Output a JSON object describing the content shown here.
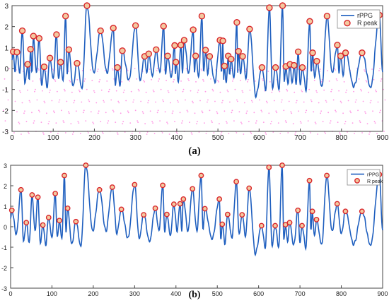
{
  "captions": {
    "a": "(a)",
    "b": "(b)"
  },
  "colors": {
    "signal": "#1f5fbf",
    "marker_edge": "#d9262b",
    "marker_fill": "#f3c9a0",
    "axis": "#444444",
    "grid_pink": "#ff33cc"
  },
  "chart_data": [
    {
      "type": "line",
      "panel": "a",
      "xlim": [
        0,
        900
      ],
      "ylim": [
        -3,
        3
      ],
      "xticks": [
        0,
        100,
        200,
        300,
        400,
        500,
        600,
        700,
        800,
        900
      ],
      "yticks": [
        -3,
        -2,
        -1,
        0,
        1,
        2,
        3
      ],
      "legend_position": "top-right",
      "series": [
        {
          "name": "rPPG",
          "kind": "line"
        },
        {
          "name": "R peak",
          "kind": "marker"
        }
      ],
      "peaks": [
        [
          3,
          0.8
        ],
        [
          12,
          0.78
        ],
        [
          25,
          1.8
        ],
        [
          38,
          0.2
        ],
        [
          45,
          0.92
        ],
        [
          52,
          1.55
        ],
        [
          66,
          1.44
        ],
        [
          78,
          0.08
        ],
        [
          92,
          0.5
        ],
        [
          108,
          1.62
        ],
        [
          118,
          0.3
        ],
        [
          130,
          2.5
        ],
        [
          138,
          0.9
        ],
        [
          158,
          0.25
        ],
        [
          182,
          3.0
        ],
        [
          215,
          1.8
        ],
        [
          246,
          1.93
        ],
        [
          256,
          0.05
        ],
        [
          268,
          0.85
        ],
        [
          300,
          2.05
        ],
        [
          322,
          0.58
        ],
        [
          332,
          0.7
        ],
        [
          350,
          0.9
        ],
        [
          368,
          2.02
        ],
        [
          378,
          0.6
        ],
        [
          395,
          1.1
        ],
        [
          398,
          0.3
        ],
        [
          410,
          1.12
        ],
        [
          418,
          1.35
        ],
        [
          440,
          1.85
        ],
        [
          446,
          0.6
        ],
        [
          461,
          2.5
        ],
        [
          470,
          0.88
        ],
        [
          480,
          0.58
        ],
        [
          505,
          1.35
        ],
        [
          512,
          1.32
        ],
        [
          516,
          0.12
        ],
        [
          525,
          0.6
        ],
        [
          532,
          0.45
        ],
        [
          546,
          2.2
        ],
        [
          550,
          0.82
        ],
        [
          560,
          0.58
        ],
        [
          577,
          1.88
        ],
        [
          607,
          0.05
        ],
        [
          625,
          2.9
        ],
        [
          640,
          0.05
        ],
        [
          657,
          3.0
        ],
        [
          665,
          0.1
        ],
        [
          675,
          0.2
        ],
        [
          685,
          0.15
        ],
        [
          695,
          0.8
        ],
        [
          705,
          0.05
        ],
        [
          723,
          2.25
        ],
        [
          730,
          0.75
        ],
        [
          740,
          0.35
        ],
        [
          765,
          2.5
        ],
        [
          790,
          1.12
        ],
        [
          798,
          0.6
        ],
        [
          810,
          0.75
        ],
        [
          850,
          0.75
        ],
        [
          892,
          2.55
        ]
      ]
    },
    {
      "type": "line",
      "panel": "b",
      "xlim": [
        0,
        900
      ],
      "ylim": [
        -3,
        3
      ],
      "xticks": [
        0,
        100,
        200,
        300,
        400,
        500,
        600,
        700,
        800,
        900
      ],
      "yticks": [
        -3,
        -2,
        -1,
        0,
        1,
        2,
        3
      ],
      "legend_position": "top-right",
      "series": [
        {
          "name": "rPPG",
          "kind": "line"
        },
        {
          "name": "R peak",
          "kind": "marker"
        }
      ],
      "peaks": [
        [
          3,
          0.8
        ],
        [
          25,
          1.8
        ],
        [
          38,
          0.2
        ],
        [
          52,
          1.55
        ],
        [
          66,
          1.44
        ],
        [
          78,
          0.08
        ],
        [
          92,
          0.45
        ],
        [
          108,
          1.62
        ],
        [
          118,
          0.3
        ],
        [
          130,
          2.5
        ],
        [
          138,
          0.9
        ],
        [
          158,
          0.25
        ],
        [
          182,
          3.0
        ],
        [
          215,
          1.8
        ],
        [
          246,
          1.93
        ],
        [
          268,
          0.85
        ],
        [
          300,
          2.05
        ],
        [
          322,
          0.58
        ],
        [
          350,
          0.9
        ],
        [
          368,
          2.02
        ],
        [
          378,
          0.6
        ],
        [
          395,
          1.1
        ],
        [
          410,
          1.12
        ],
        [
          418,
          1.35
        ],
        [
          440,
          1.85
        ],
        [
          461,
          2.5
        ],
        [
          470,
          0.88
        ],
        [
          505,
          1.35
        ],
        [
          512,
          0.12
        ],
        [
          525,
          0.6
        ],
        [
          546,
          2.2
        ],
        [
          560,
          0.58
        ],
        [
          577,
          1.88
        ],
        [
          607,
          0.05
        ],
        [
          625,
          2.9
        ],
        [
          640,
          0.05
        ],
        [
          657,
          3.0
        ],
        [
          665,
          0.1
        ],
        [
          675,
          0.2
        ],
        [
          695,
          0.8
        ],
        [
          705,
          0.05
        ],
        [
          723,
          2.25
        ],
        [
          730,
          0.75
        ],
        [
          740,
          0.35
        ],
        [
          765,
          2.5
        ],
        [
          790,
          1.12
        ],
        [
          810,
          0.75
        ],
        [
          850,
          0.75
        ],
        [
          892,
          2.55
        ]
      ]
    }
  ]
}
